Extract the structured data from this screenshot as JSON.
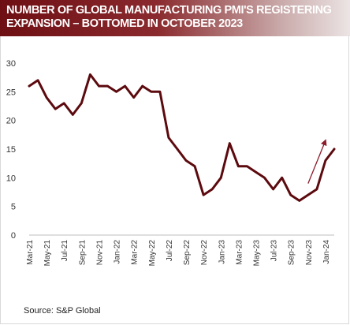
{
  "title": {
    "line1": "NUMBER OF GLOBAL MANUFACTURING PMI'S REGISTERING",
    "line2": "EXPANSION – BOTTOMED IN OCTOBER 2023"
  },
  "source": "Source:  S&P Global",
  "colors": {
    "title_bg": "#7a1a1f",
    "line": "#5c0a0e",
    "arrow": "#8b1d2c",
    "axis_text": "#333333"
  },
  "chart_data": {
    "type": "line",
    "title": "NUMBER OF GLOBAL MANUFACTURING PMI'S REGISTERING EXPANSION – BOTTOMED IN OCTOBER 2023",
    "xlabel": "",
    "ylabel": "",
    "ylim": [
      0,
      30
    ],
    "yticks": [
      0,
      5,
      10,
      15,
      20,
      25,
      30
    ],
    "grid": false,
    "legend": "none",
    "x": [
      "Mar-21",
      "Apr-21",
      "May-21",
      "Jun-21",
      "Jul-21",
      "Aug-21",
      "Sep-21",
      "Oct-21",
      "Nov-21",
      "Dec-21",
      "Jan-22",
      "Feb-22",
      "Mar-22",
      "Apr-22",
      "May-22",
      "Jun-22",
      "Jul-22",
      "Aug-22",
      "Sep-22",
      "Oct-22",
      "Nov-22",
      "Dec-22",
      "Jan-23",
      "Feb-23",
      "Mar-23",
      "Apr-23",
      "May-23",
      "Jun-23",
      "Jul-23",
      "Aug-23",
      "Sep-23",
      "Oct-23",
      "Nov-23",
      "Dec-23",
      "Jan-24",
      "Feb-24"
    ],
    "xtick_labels": [
      "Mar-21",
      "May-21",
      "Jul-21",
      "Sep-21",
      "Nov-21",
      "Jan-22",
      "Mar-22",
      "May-22",
      "Jul-22",
      "Sep-22",
      "Nov-22",
      "Jan-23",
      "Mar-23",
      "May-23",
      "Jul-23",
      "Sep-23",
      "Nov-23",
      "Jan-24"
    ],
    "series": [
      {
        "values": [
          26,
          27,
          24,
          22,
          23,
          21,
          23,
          28,
          26,
          26,
          25,
          26,
          24,
          26,
          25,
          25,
          17,
          15,
          13,
          12,
          7,
          8,
          10,
          16,
          12,
          12,
          11,
          10,
          8,
          10,
          7,
          6,
          7,
          8,
          13,
          15
        ]
      }
    ],
    "annotations": [
      {
        "type": "arrow",
        "from": {
          "x": "Nov-23",
          "y": 9
        },
        "to": {
          "x": "Jan-24",
          "y": 16.5
        }
      }
    ]
  }
}
